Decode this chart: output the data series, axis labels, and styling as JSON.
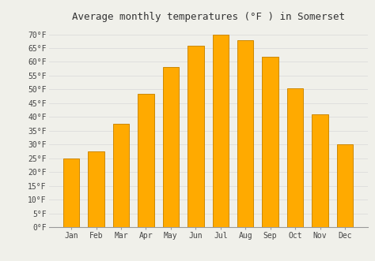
{
  "title": "Average monthly temperatures (°F ) in Somerset",
  "months": [
    "Jan",
    "Feb",
    "Mar",
    "Apr",
    "May",
    "Jun",
    "Jul",
    "Aug",
    "Sep",
    "Oct",
    "Nov",
    "Dec"
  ],
  "values": [
    25,
    27.5,
    37.5,
    48.5,
    58,
    66,
    70,
    68,
    62,
    50.5,
    41,
    30
  ],
  "bar_color": "#FFAA00",
  "bar_edge_color": "#CC8800",
  "background_color": "#f0f0ea",
  "grid_color": "#d8d8d8",
  "ylim": [
    0,
    73
  ],
  "yticks": [
    0,
    5,
    10,
    15,
    20,
    25,
    30,
    35,
    40,
    45,
    50,
    55,
    60,
    65,
    70
  ],
  "ytick_labels": [
    "0°F",
    "5°F",
    "10°F",
    "15°F",
    "20°F",
    "25°F",
    "30°F",
    "35°F",
    "40°F",
    "45°F",
    "50°F",
    "55°F",
    "60°F",
    "65°F",
    "70°F"
  ],
  "title_fontsize": 9,
  "tick_fontsize": 7,
  "figsize": [
    4.74,
    3.31
  ],
  "dpi": 100,
  "bar_width": 0.65
}
